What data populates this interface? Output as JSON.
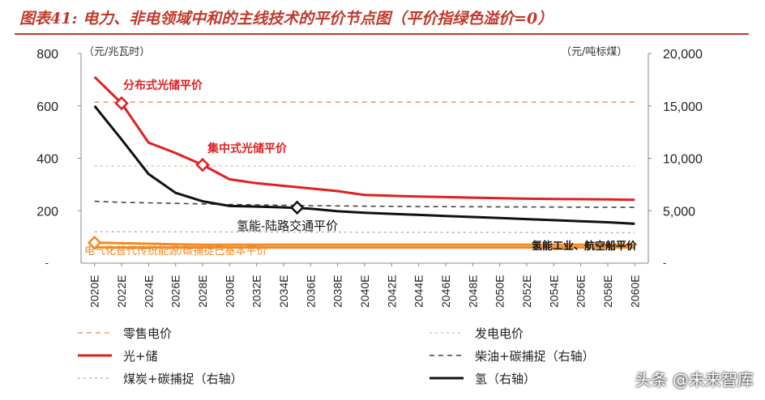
{
  "title": "图表41: 电力、非电领域中和的主线技术的平价节点图（平价指绿色溢价=0）",
  "watermark": "头条 @未来智库",
  "chart_data": {
    "type": "line",
    "left_axis": {
      "unit": "（元/兆瓦时）",
      "ticks": [
        800,
        600,
        400,
        200
      ],
      "ylim": [
        0,
        800
      ]
    },
    "right_axis": {
      "unit": "（元/吨标煤）",
      "ticks": [
        "20,000",
        "15,000",
        "10,000",
        "5,000"
      ],
      "ylim": [
        0,
        20000
      ]
    },
    "x": [
      "2020E",
      "2022E",
      "2024E",
      "2026E",
      "2028E",
      "2030E",
      "2032E",
      "2034E",
      "2036E",
      "2038E",
      "2040E",
      "2042E",
      "2044E",
      "2046E",
      "2048E",
      "2050E",
      "2052E",
      "2054E",
      "2056E",
      "2058E",
      "2060E"
    ],
    "series": [
      {
        "name": "零售电价",
        "axis": "left",
        "color": "#f0a060",
        "dash": "6,5",
        "values": [
          614,
          614,
          614,
          614,
          614,
          614,
          614,
          614,
          614,
          614,
          614,
          614,
          614,
          614,
          614,
          614,
          614,
          614,
          614,
          614,
          614
        ]
      },
      {
        "name": "发电电价",
        "axis": "left",
        "color": "#e6c6b6",
        "dash": "3,4",
        "values": [
          370,
          370,
          370,
          370,
          370,
          370,
          370,
          370,
          370,
          370,
          370,
          370,
          370,
          370,
          370,
          370,
          370,
          370,
          370,
          370,
          370
        ]
      },
      {
        "name": "光+储",
        "axis": "left",
        "color": "#e02020",
        "dash": "",
        "values": [
          710,
          610,
          460,
          420,
          375,
          320,
          305,
          295,
          285,
          275,
          260,
          257,
          254,
          252,
          250,
          248,
          246,
          245,
          244,
          243,
          242
        ]
      },
      {
        "name": "柴油+碳捕捉（右轴）",
        "axis": "right",
        "color": "#444444",
        "dash": "6,5",
        "values": [
          5900,
          5800,
          5750,
          5700,
          5650,
          5600,
          5560,
          5520,
          5480,
          5460,
          5440,
          5420,
          5400,
          5390,
          5380,
          5370,
          5360,
          5350,
          5340,
          5330,
          5320
        ]
      },
      {
        "name": "煤炭+碳捕捉（右轴）",
        "axis": "right",
        "color": "#bbbbbb",
        "dash": "3,4",
        "values": [
          3000,
          2995,
          2990,
          2985,
          2980,
          2975,
          2970,
          2965,
          2960,
          2955,
          2950,
          2945,
          2940,
          2935,
          2930,
          2925,
          2920,
          2915,
          2910,
          2905,
          2900
        ]
      },
      {
        "name": "氢（右轴）",
        "axis": "right",
        "color": "#111111",
        "dash": "",
        "values": [
          15000,
          11800,
          8500,
          6700,
          5900,
          5450,
          5400,
          5320,
          5200,
          4950,
          4800,
          4700,
          4600,
          4500,
          4400,
          4300,
          4200,
          4100,
          4000,
          3900,
          3750
        ]
      },
      {
        "name": "电气化替代",
        "axis": "left",
        "color": "#f08a24",
        "dash": "",
        "values": [
          78,
          76,
          74,
          72,
          70,
          70,
          70,
          70,
          70,
          70,
          70,
          70,
          70,
          70,
          70,
          70,
          70,
          70,
          70,
          70,
          70
        ]
      },
      {
        "name": "氢工业",
        "axis": "left",
        "color": "#f08a24",
        "dash": "",
        "values": [
          60,
          60,
          60,
          60,
          60,
          60,
          60,
          60,
          60,
          60,
          60,
          60,
          60,
          60,
          60,
          60,
          60,
          60,
          60,
          60,
          60
        ]
      }
    ],
    "markers": [
      {
        "series": "光+储",
        "x": "2022E",
        "value": 610,
        "color": "#e02020"
      },
      {
        "series": "光+储",
        "x": "2028E",
        "value": 375,
        "color": "#e02020"
      },
      {
        "series": "氢（右轴）",
        "x": "2035E",
        "value": 5300,
        "color": "#111111"
      },
      {
        "series": "电气化替代",
        "x": "2020E",
        "value": 78,
        "color": "#f08a24"
      }
    ],
    "annotations": [
      {
        "text": "分布式光储平价",
        "color": "#e02020"
      },
      {
        "text": "集中式光储平价",
        "color": "#e02020"
      },
      {
        "text": "氢能-陆路交通平价",
        "color": "#111111"
      },
      {
        "text": "电气化替代传统能源/碳捕捉已基本平价",
        "color": "#f08a24"
      },
      {
        "text": "氢能工业、航空船平价",
        "color": "#111111"
      }
    ],
    "legend_items": [
      {
        "label": "零售电价",
        "color": "#f0a060",
        "style": "dashed"
      },
      {
        "label": "发电电价",
        "color": "#e6c6b6",
        "style": "dotted"
      },
      {
        "label": "光+储",
        "color": "#e02020",
        "style": "solid"
      },
      {
        "label": "柴油+碳捕捉（右轴）",
        "color": "#444444",
        "style": "dashed"
      },
      {
        "label": "煤炭+碳捕捉（右轴）",
        "color": "#bbbbbb",
        "style": "dotted"
      },
      {
        "label": "氢（右轴）",
        "color": "#111111",
        "style": "solid"
      }
    ]
  }
}
